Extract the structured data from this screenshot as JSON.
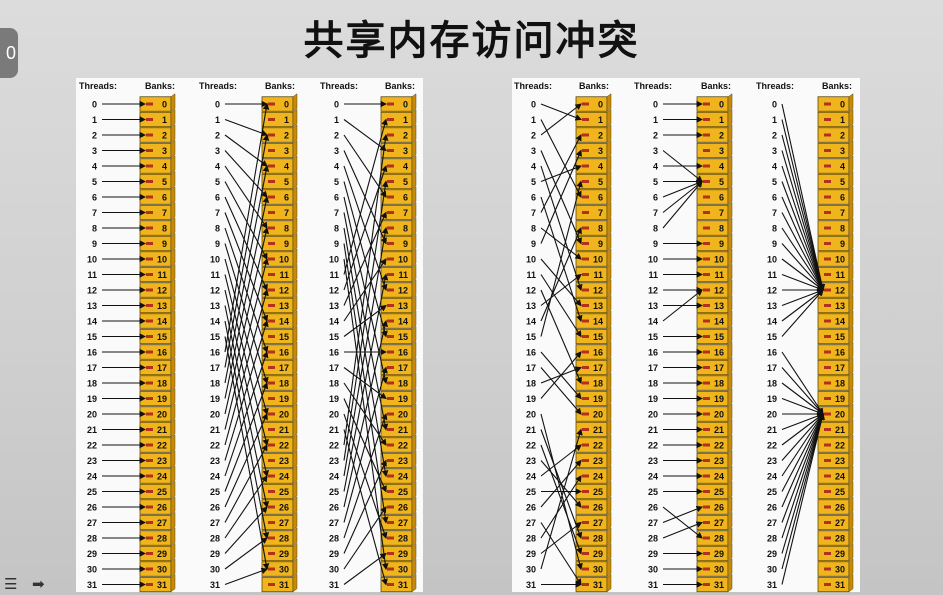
{
  "title": "共享内存访问冲突",
  "badge": "0",
  "labels": {
    "threads": "Threads:",
    "banks": "Banks:"
  },
  "rows": 32,
  "colors": {
    "bank_fill": "#f0b41c",
    "bank_stroke": "#5a4a10",
    "bank_side": "#c88a08",
    "arrow": "#111111",
    "port": "#b2301e"
  },
  "icons": [
    "menu-icon",
    "arrow-right-icon"
  ],
  "diagrams": [
    {
      "name": "linear-addressing-stride-1",
      "mapping": [
        0,
        1,
        2,
        3,
        4,
        5,
        6,
        7,
        8,
        9,
        10,
        11,
        12,
        13,
        14,
        15,
        16,
        17,
        18,
        19,
        20,
        21,
        22,
        23,
        24,
        25,
        26,
        27,
        28,
        29,
        30,
        31
      ]
    },
    {
      "name": "linear-addressing-stride-2",
      "mapping": [
        0,
        2,
        4,
        6,
        8,
        10,
        12,
        14,
        16,
        18,
        20,
        22,
        24,
        26,
        28,
        30,
        0,
        2,
        4,
        6,
        8,
        10,
        12,
        14,
        16,
        18,
        20,
        22,
        24,
        26,
        28,
        30
      ]
    },
    {
      "name": "linear-addressing-stride-3",
      "mapping": [
        0,
        3,
        6,
        9,
        12,
        15,
        18,
        21,
        24,
        27,
        30,
        1,
        4,
        7,
        10,
        13,
        16,
        19,
        22,
        25,
        28,
        31,
        2,
        5,
        8,
        11,
        14,
        17,
        20,
        23,
        26,
        29
      ]
    },
    {
      "name": "random-permutation",
      "mapping": [
        1,
        6,
        0,
        9,
        12,
        4,
        14,
        2,
        10,
        3,
        13,
        15,
        18,
        11,
        8,
        5,
        19,
        20,
        17,
        16,
        30,
        28,
        29,
        26,
        22,
        25,
        23,
        31,
        24,
        27,
        21,
        31
      ]
    },
    {
      "name": "partial-broadcast",
      "mapping": [
        0,
        1,
        2,
        5,
        4,
        5,
        5,
        5,
        5,
        9,
        10,
        11,
        12,
        13,
        12,
        15,
        16,
        17,
        18,
        19,
        20,
        21,
        22,
        23,
        24,
        25,
        28,
        26,
        27,
        29,
        30,
        31
      ]
    },
    {
      "name": "broadcast-two-banks",
      "mapping": [
        12,
        12,
        12,
        12,
        12,
        12,
        12,
        12,
        12,
        12,
        12,
        12,
        12,
        12,
        12,
        12,
        20,
        20,
        20,
        20,
        20,
        20,
        20,
        20,
        20,
        20,
        20,
        20,
        20,
        20,
        20,
        20
      ]
    }
  ]
}
